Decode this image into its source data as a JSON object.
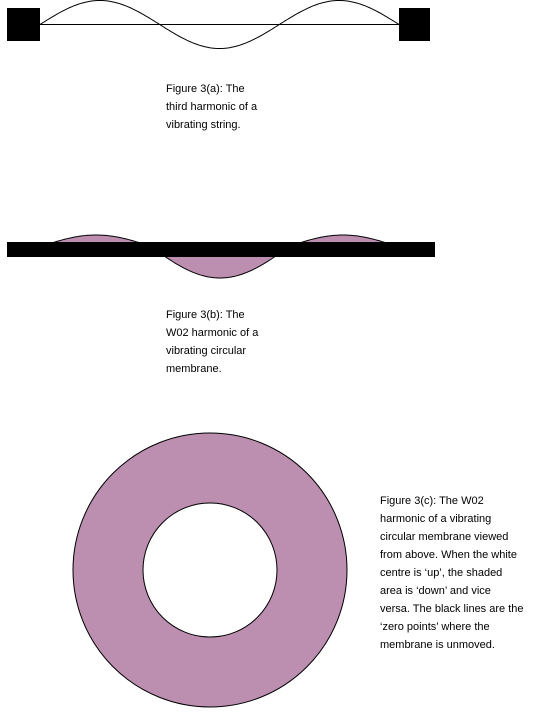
{
  "figures": {
    "string": {
      "caption": "Figure 3(a): The\nthird harmonic of a\nvibrating string."
    },
    "membrane_side": {
      "caption": "Figure 3(b): The\nW02 harmonic of a\nvibrating circular\nmembrane."
    },
    "membrane_top": {
      "caption": "Figure 3(c): The W02\nharmonic of a vibrating\ncircular membrane viewed\nfrom above. When the white\ncentre is ‘up’, the shaded\narea is ‘down’ and vice\nversa. The black lines are the\n‘zero points’ where the\nmembrane is unmoved."
    }
  },
  "colors": {
    "shading": "#bc8fb0",
    "ink": "#000000",
    "background": "#ffffff"
  }
}
